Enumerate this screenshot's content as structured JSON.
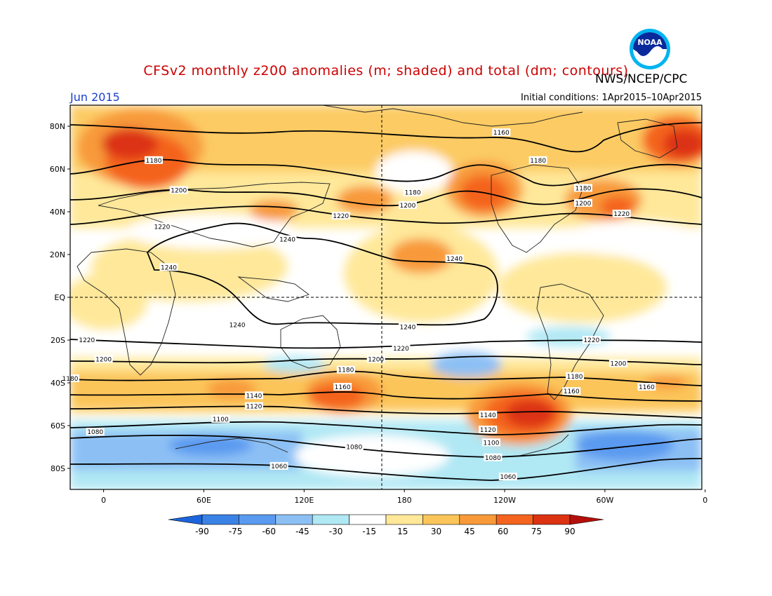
{
  "title": "CFSv2 monthly z200 anomalies (m; shaded) and total (dm; contours)",
  "organization": "NWS/NCEP/CPC",
  "logo_text": "NOAA",
  "period": "Jun 2015",
  "initial_conditions": "Initial conditions: 1Apr2015–10Apr2015",
  "lat_labels": [
    "80N",
    "60N",
    "40N",
    "20N",
    "EQ",
    "20S",
    "40S",
    "60S",
    "80S"
  ],
  "lon_labels": [
    "0",
    "60E",
    "120E",
    "180",
    "120W",
    "60W",
    "0"
  ],
  "colorbar": {
    "ticks": [
      "-90",
      "-75",
      "-60",
      "-45",
      "-30",
      "-15",
      "15",
      "30",
      "45",
      "60",
      "75",
      "90"
    ],
    "colors": [
      "#1c64dc",
      "#3a82e6",
      "#5a9af0",
      "#8cc0f4",
      "#b0e8f4",
      "#ffffff",
      "#ffe89a",
      "#fcc55a",
      "#f89a3a",
      "#f4641e",
      "#dc3212",
      "#b40f0a"
    ]
  },
  "contour_labels": [
    {
      "text": "1160",
      "lon": -122,
      "lat": 77
    },
    {
      "text": "1180",
      "lon": 30,
      "lat": 64
    },
    {
      "text": "1180",
      "lon": -100,
      "lat": 64
    },
    {
      "text": "1200",
      "lon": 45,
      "lat": 50
    },
    {
      "text": "1180",
      "lon": -175,
      "lat": 49
    },
    {
      "text": "1200",
      "lon": -178,
      "lat": 43
    },
    {
      "text": "1220",
      "lon": 142,
      "lat": 38
    },
    {
      "text": "1180",
      "lon": -73,
      "lat": 51
    },
    {
      "text": "1200",
      "lon": -73,
      "lat": 44
    },
    {
      "text": "1220",
      "lon": -50,
      "lat": 39
    },
    {
      "text": "1220",
      "lon": 35,
      "lat": 33
    },
    {
      "text": "1240",
      "lon": 110,
      "lat": 27
    },
    {
      "text": "1240",
      "lon": -150,
      "lat": 18
    },
    {
      "text": "1240",
      "lon": 39,
      "lat": 14
    },
    {
      "text": "1240",
      "lon": -178,
      "lat": -14
    },
    {
      "text": "1240",
      "lon": 80,
      "lat": -13
    },
    {
      "text": "1220",
      "lon": -10,
      "lat": -20
    },
    {
      "text": "1220",
      "lon": 178,
      "lat": -24
    },
    {
      "text": "1220",
      "lon": -68,
      "lat": -20
    },
    {
      "text": "1200",
      "lon": 0,
      "lat": -29
    },
    {
      "text": "1200",
      "lon": 163,
      "lat": -29
    },
    {
      "text": "1200",
      "lon": -52,
      "lat": -31
    },
    {
      "text": "1180",
      "lon": -20,
      "lat": -38
    },
    {
      "text": "1180",
      "lon": 145,
      "lat": -34
    },
    {
      "text": "1180",
      "lon": -78,
      "lat": -37
    },
    {
      "text": "1160",
      "lon": -35,
      "lat": -42
    },
    {
      "text": "1160",
      "lon": 143,
      "lat": -42
    },
    {
      "text": "1160",
      "lon": -80,
      "lat": -44
    },
    {
      "text": "1140",
      "lon": 90,
      "lat": -46
    },
    {
      "text": "1140",
      "lon": -130,
      "lat": -55
    },
    {
      "text": "1120",
      "lon": 90,
      "lat": -51
    },
    {
      "text": "1120",
      "lon": -130,
      "lat": -62
    },
    {
      "text": "1100",
      "lon": 70,
      "lat": -57
    },
    {
      "text": "1100",
      "lon": -128,
      "lat": -68
    },
    {
      "text": "1080",
      "lon": -5,
      "lat": -63
    },
    {
      "text": "1080",
      "lon": 150,
      "lat": -70
    },
    {
      "text": "1080",
      "lon": -127,
      "lat": -75
    },
    {
      "text": "1060",
      "lon": 105,
      "lat": -79
    },
    {
      "text": "1060",
      "lon": -118,
      "lat": -84
    }
  ]
}
